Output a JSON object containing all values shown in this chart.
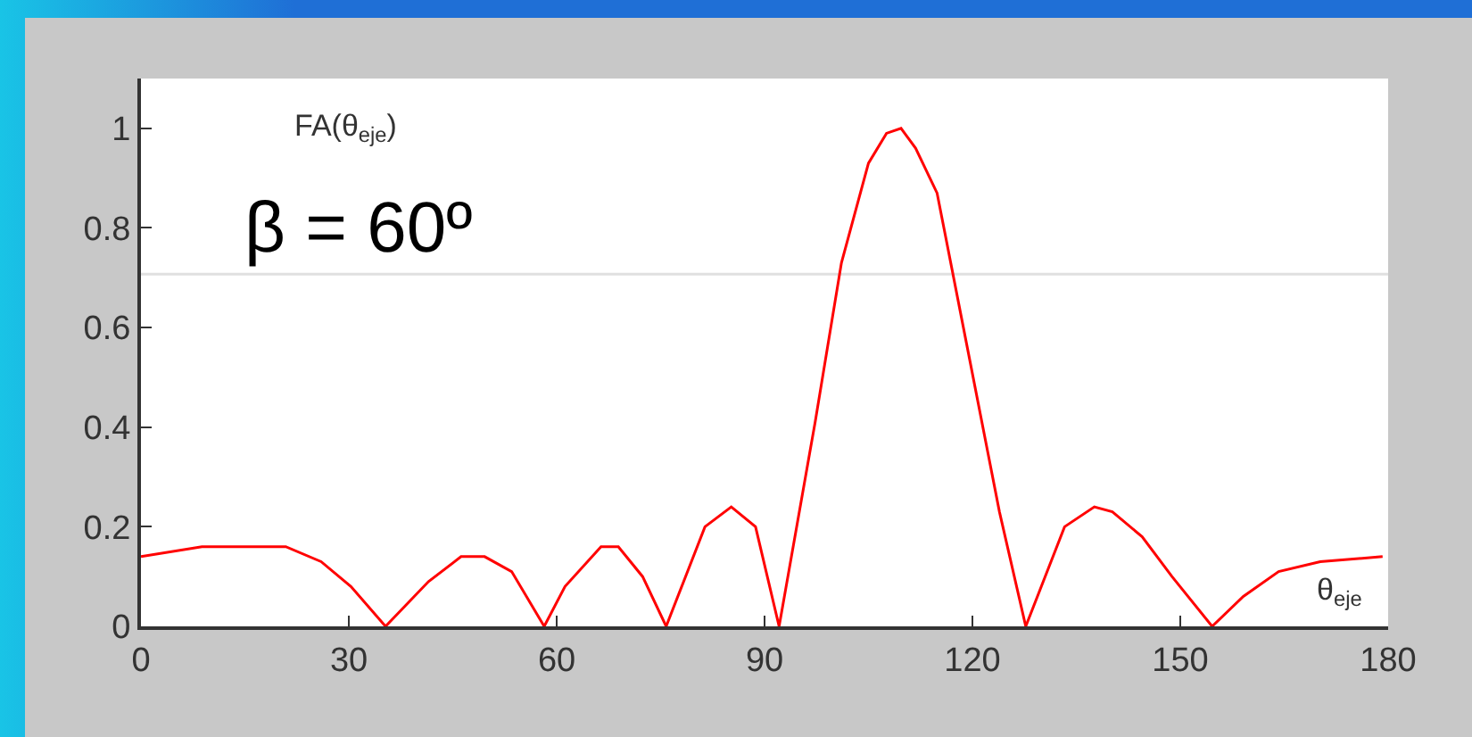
{
  "chart_data": {
    "type": "line",
    "x": [
      0,
      8.8,
      20.9,
      26,
      30.3,
      35.3,
      41.5,
      46.2,
      49.6,
      53.5,
      58.2,
      61.2,
      66.4,
      68.9,
      72.4,
      75.8,
      81.4,
      85.2,
      88.7,
      92.1,
      97.3,
      101.1,
      105,
      107.6,
      109.7,
      111.8,
      114.9,
      118.7,
      123.9,
      127.7,
      133.3,
      137.6,
      140.2,
      144.5,
      148.8,
      154.6,
      159.1,
      164.2,
      170.2,
      179.2
    ],
    "series": [
      {
        "color": "#ff0000",
        "values": [
          0.14,
          0.16,
          0.16,
          0.13,
          0.08,
          0,
          0.09,
          0.14,
          0.14,
          0.11,
          0,
          0.08,
          0.16,
          0.16,
          0.1,
          0,
          0.2,
          0.24,
          0.2,
          0,
          0.41,
          0.73,
          0.93,
          0.99,
          1,
          0.96,
          0.87,
          0.6,
          0.23,
          0,
          0.2,
          0.24,
          0.23,
          0.18,
          0.1,
          0,
          0.06,
          0.11,
          0.13,
          0.14
        ]
      }
    ],
    "xlim": [
      0,
      180
    ],
    "xticks": [
      0,
      30,
      60,
      90,
      120,
      150,
      180
    ],
    "ylim": [
      0,
      1.1
    ],
    "yticks": [
      0,
      0.2,
      0.4,
      0.6,
      0.8,
      1
    ],
    "ref_lines": [
      {
        "axis": "y",
        "value": 0.707,
        "color": "#e0e0e0"
      }
    ],
    "annotations": [
      "FA(θ$_{eje}$)",
      "β = 60º",
      "θ$_{eje}$"
    ],
    "grid": false,
    "marker": "none",
    "line_style": "solid"
  }
}
